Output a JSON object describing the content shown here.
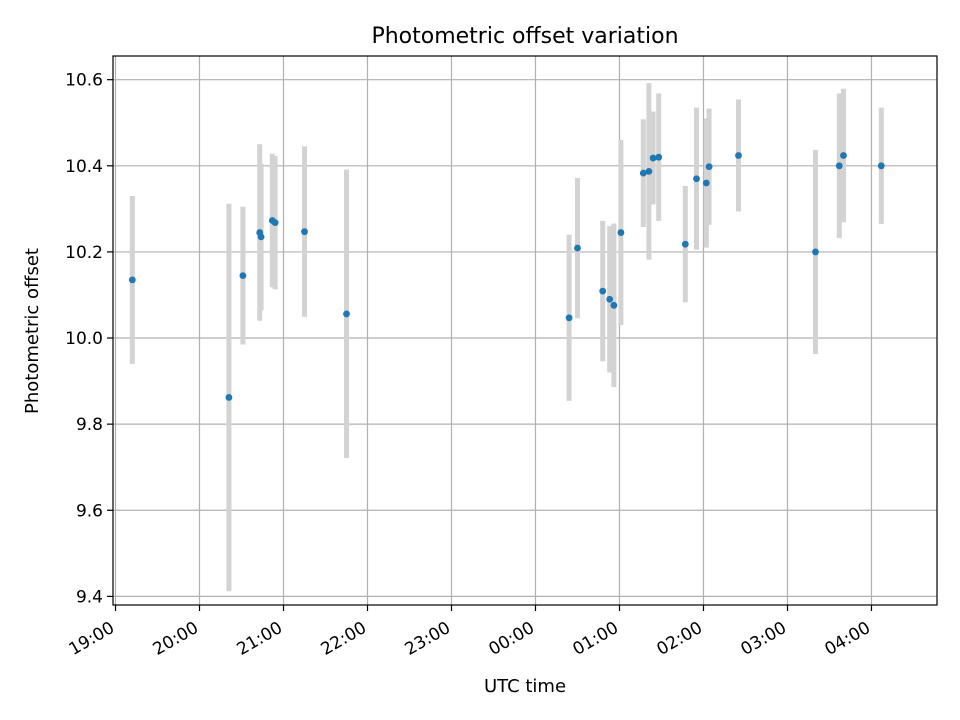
{
  "chart_data": {
    "type": "scatter",
    "title": "Photometric offset variation",
    "xlabel": "UTC time",
    "ylabel": "Photometric offset",
    "x_tick_labels": [
      "19:00",
      "20:00",
      "21:00",
      "22:00",
      "23:00",
      "00:00",
      "01:00",
      "02:00",
      "03:00",
      "04:00"
    ],
    "y_tick_labels": [
      "9.4",
      "9.6",
      "9.8",
      "10.0",
      "10.2",
      "10.4",
      "10.6"
    ],
    "x_tick_values_h": [
      19,
      20,
      21,
      22,
      23,
      24,
      25,
      26,
      27,
      28
    ],
    "y_tick_values": [
      9.4,
      9.6,
      9.8,
      10.0,
      10.2,
      10.4,
      10.6
    ],
    "xlim_h": [
      18.97,
      28.78
    ],
    "ylim": [
      9.38,
      10.655
    ],
    "grid": true,
    "x_tick_rotation_deg": 30,
    "point_color": "#1f77b4",
    "errorbar_color": "#d3d3d3",
    "points": [
      {
        "t": "19:12",
        "y": 10.135,
        "err": 0.195
      },
      {
        "t": "20:21",
        "y": 9.862,
        "err": 0.45
      },
      {
        "t": "20:31",
        "y": 10.145,
        "err": 0.16
      },
      {
        "t": "20:43",
        "y": 10.245,
        "err": 0.205
      },
      {
        "t": "20:44",
        "y": 10.235,
        "err": 0.17
      },
      {
        "t": "20:52",
        "y": 10.273,
        "err": 0.155
      },
      {
        "t": "20:54",
        "y": 10.268,
        "err": 0.155
      },
      {
        "t": "21:15",
        "y": 10.247,
        "err": 0.198
      },
      {
        "t": "21:45",
        "y": 10.056,
        "err": 0.335
      },
      {
        "t": "00:24",
        "y": 10.047,
        "err": 0.193
      },
      {
        "t": "00:30",
        "y": 10.209,
        "err": 0.163
      },
      {
        "t": "00:48",
        "y": 10.109,
        "err": 0.163
      },
      {
        "t": "00:53",
        "y": 10.09,
        "err": 0.17
      },
      {
        "t": "00:56",
        "y": 10.076,
        "err": 0.19
      },
      {
        "t": "01:01",
        "y": 10.245,
        "err": 0.215
      },
      {
        "t": "01:17",
        "y": 10.383,
        "err": 0.125
      },
      {
        "t": "01:21",
        "y": 10.387,
        "err": 0.205
      },
      {
        "t": "01:24",
        "y": 10.418,
        "err": 0.108
      },
      {
        "t": "01:28",
        "y": 10.42,
        "err": 0.148
      },
      {
        "t": "01:47",
        "y": 10.218,
        "err": 0.135
      },
      {
        "t": "01:55",
        "y": 10.37,
        "err": 0.165
      },
      {
        "t": "02:02",
        "y": 10.36,
        "err": 0.15
      },
      {
        "t": "02:04",
        "y": 10.398,
        "err": 0.135
      },
      {
        "t": "02:25",
        "y": 10.424,
        "err": 0.13
      },
      {
        "t": "03:20",
        "y": 10.2,
        "err": 0.237
      },
      {
        "t": "03:37",
        "y": 10.4,
        "err": 0.168
      },
      {
        "t": "03:40",
        "y": 10.424,
        "err": 0.155
      },
      {
        "t": "04:07",
        "y": 10.4,
        "err": 0.135
      }
    ]
  }
}
